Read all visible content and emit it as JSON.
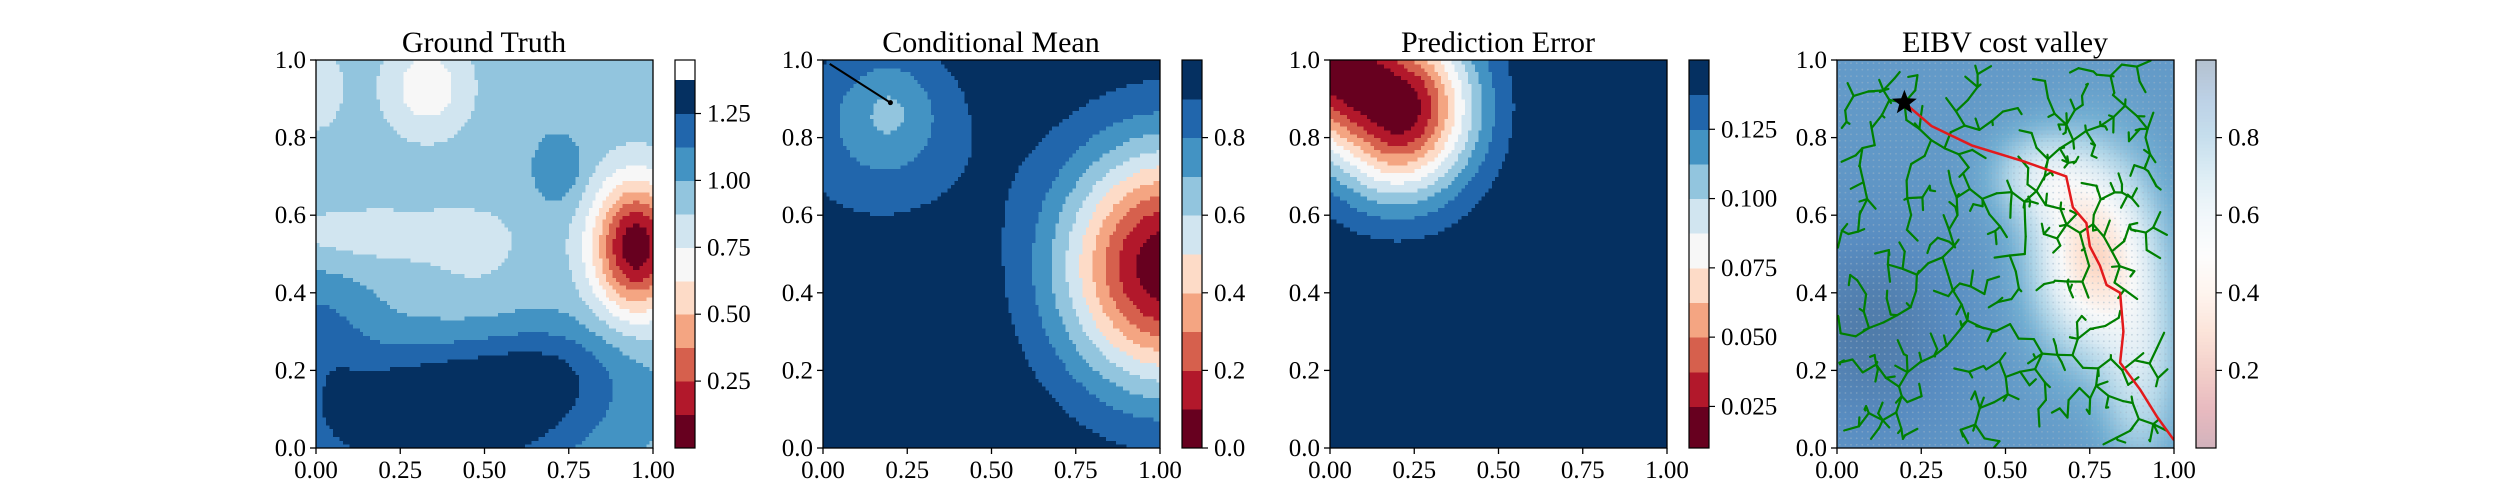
{
  "figure": {
    "panel_count": 4
  },
  "chart_data": [
    {
      "type": "heatmap",
      "title": "Ground Truth",
      "xlim": [
        0,
        1
      ],
      "ylim": [
        0,
        1
      ],
      "xticks": [
        "0.00",
        "0.25",
        "0.50",
        "0.75",
        "1.00"
      ],
      "yticks": [
        "0.0",
        "0.2",
        "0.4",
        "0.6",
        "0.8",
        "1.0"
      ],
      "xtick_values": [
        0,
        0.25,
        0.5,
        0.75,
        1.0
      ],
      "ytick_values": [
        0,
        0.2,
        0.4,
        0.6,
        0.8,
        1.0
      ],
      "colormap": "RdBu",
      "colorbar": {
        "levels": [
          0.0,
          0.125,
          0.25,
          0.375,
          0.5,
          0.625,
          0.75,
          0.875,
          1.0,
          1.125,
          1.25,
          1.375,
          1.45
        ],
        "colors": [
          "#67001f",
          "#b2182b",
          "#d6604d",
          "#f4a582",
          "#fddbc7",
          "#f7f7f7",
          "#d1e5f0",
          "#92c5de",
          "#4393c3",
          "#2166ac",
          "#053061"
        ],
        "ticks": [
          "0.25",
          "0.50",
          "0.75",
          "1.00",
          "1.25"
        ],
        "tick_values": [
          0.25,
          0.5,
          0.75,
          1.0,
          1.25
        ]
      },
      "field": {
        "base": 0.95,
        "terms": [
          {
            "type": "gauss",
            "x": 0.95,
            "y": 0.52,
            "sx": 0.09,
            "sy": 0.12,
            "a": -0.92
          },
          {
            "type": "gauss",
            "x": 0.33,
            "y": 0.93,
            "sx": 0.09,
            "sy": 0.09,
            "a": -0.28
          },
          {
            "type": "gauss",
            "x": 0.0,
            "y": 0.93,
            "sx": 0.06,
            "sy": 0.08,
            "a": -0.18
          },
          {
            "type": "gauss",
            "x": 0.15,
            "y": 0.55,
            "sx": 0.25,
            "sy": 0.06,
            "a": -0.14
          },
          {
            "type": "gauss",
            "x": 0.48,
            "y": 0.5,
            "sx": 0.1,
            "sy": 0.1,
            "a": -0.08
          },
          {
            "type": "gauss",
            "x": 0.35,
            "y": 0.05,
            "sx": 0.3,
            "sy": 0.1,
            "a": 0.45
          },
          {
            "type": "gauss",
            "x": 0.45,
            "y": 0.2,
            "sx": 0.3,
            "sy": 0.08,
            "a": 0.2
          },
          {
            "type": "gauss",
            "x": 0.0,
            "y": 0.3,
            "sx": 0.12,
            "sy": 0.12,
            "a": 0.2
          },
          {
            "type": "gauss",
            "x": 0.72,
            "y": 0.72,
            "sx": 0.05,
            "sy": 0.06,
            "a": 0.18
          },
          {
            "type": "gauss",
            "x": 0.7,
            "y": 0.2,
            "sx": 0.15,
            "sy": 0.1,
            "a": 0.15
          }
        ]
      }
    },
    {
      "type": "heatmap",
      "title": "Conditional Mean",
      "xlim": [
        0,
        1
      ],
      "ylim": [
        0,
        1
      ],
      "xticks": [
        "0.00",
        "0.25",
        "0.50",
        "0.75",
        "1.00"
      ],
      "yticks": [
        "0.0",
        "0.2",
        "0.4",
        "0.6",
        "0.8",
        "1.0"
      ],
      "xtick_values": [
        0,
        0.25,
        0.5,
        0.75,
        1.0
      ],
      "ytick_values": [
        0,
        0.2,
        0.4,
        0.6,
        0.8,
        1.0
      ],
      "colormap": "RdBu",
      "colorbar": {
        "levels": [
          0.0,
          0.1,
          0.2,
          0.3,
          0.4,
          0.5,
          0.6,
          0.7,
          0.8,
          0.9,
          1.0
        ],
        "colors": [
          "#67001f",
          "#b2182b",
          "#d6604d",
          "#f4a582",
          "#fddbc7",
          "#d1e5f0",
          "#92c5de",
          "#4393c3",
          "#2166ac",
          "#053061"
        ],
        "ticks": [
          "0.0",
          "0.2",
          "0.4",
          "0.6",
          "0.8"
        ],
        "tick_values": [
          0.0,
          0.2,
          0.4,
          0.6,
          0.8
        ]
      },
      "field": {
        "base": 0.99,
        "terms": [
          {
            "type": "gauss",
            "x": 1.02,
            "y": 0.47,
            "sx": 0.22,
            "sy": 0.22,
            "a": -0.97
          },
          {
            "type": "gauss",
            "x": 0.17,
            "y": 0.82,
            "sx": 0.2,
            "sy": 0.17,
            "a": -0.2
          },
          {
            "type": "gauss",
            "x": 0.2,
            "y": 0.88,
            "sx": 0.09,
            "sy": 0.09,
            "a": -0.12
          }
        ]
      },
      "path": [
        [
          0.02,
          0.99
        ],
        [
          0.2,
          0.89
        ]
      ]
    },
    {
      "type": "heatmap",
      "title": "Prediction Error",
      "xlim": [
        0,
        1
      ],
      "ylim": [
        0,
        1
      ],
      "xticks": [
        "0.00",
        "0.25",
        "0.50",
        "0.75",
        "1.00"
      ],
      "yticks": [
        "0.0",
        "0.2",
        "0.4",
        "0.6",
        "0.8",
        "1.0"
      ],
      "xtick_values": [
        0,
        0.25,
        0.5,
        0.75,
        1.0
      ],
      "ytick_values": [
        0,
        0.2,
        0.4,
        0.6,
        0.8,
        1.0
      ],
      "colormap": "RdBu",
      "colorbar": {
        "levels": [
          0.01,
          0.025,
          0.0375,
          0.05,
          0.0625,
          0.075,
          0.0875,
          0.1,
          0.1125,
          0.125,
          0.1375,
          0.15
        ],
        "colors": [
          "#67001f",
          "#b2182b",
          "#d6604d",
          "#f4a582",
          "#fddbc7",
          "#f7f7f7",
          "#d1e5f0",
          "#92c5de",
          "#4393c3",
          "#2166ac",
          "#053061"
        ],
        "ticks": [
          "0.025",
          "0.050",
          "0.075",
          "0.100",
          "0.125"
        ],
        "tick_values": [
          0.025,
          0.05,
          0.075,
          0.1,
          0.125
        ]
      },
      "field": {
        "base": 0.149,
        "terms": [
          {
            "type": "segment",
            "x1": 0.03,
            "y1": 0.98,
            "x2": 0.2,
            "y2": 0.88,
            "s": 0.155,
            "a": -0.137
          }
        ]
      }
    },
    {
      "type": "heatmap",
      "title": "EIBV cost valley",
      "xlim": [
        0,
        1
      ],
      "ylim": [
        0,
        1
      ],
      "xticks": [
        "0.00",
        "0.25",
        "0.50",
        "0.75",
        "1.00"
      ],
      "yticks": [
        "0.0",
        "0.2",
        "0.4",
        "0.6",
        "0.8",
        "1.0"
      ],
      "xtick_values": [
        0,
        0.25,
        0.5,
        0.75,
        1.0
      ],
      "ytick_values": [
        0,
        0.2,
        0.4,
        0.6,
        0.8,
        1.0
      ],
      "colormap": "RdBu",
      "colorbar": {
        "continuous": true,
        "vmin": 0.0,
        "vmax": 1.0,
        "ticks": [
          "0.2",
          "0.4",
          "0.6",
          "0.8"
        ],
        "tick_values": [
          0.2,
          0.4,
          0.6,
          0.8
        ]
      },
      "field": {
        "base": 0.86,
        "terms": [
          {
            "type": "gauss",
            "x": 0.76,
            "y": 0.5,
            "sx": 0.12,
            "sy": 0.17,
            "a": -0.48
          },
          {
            "type": "gauss",
            "x": 0.9,
            "y": 0.2,
            "sx": 0.08,
            "sy": 0.18,
            "a": -0.2
          },
          {
            "type": "gauss",
            "x": 0.6,
            "y": 0.7,
            "sx": 0.1,
            "sy": 0.08,
            "a": -0.2
          },
          {
            "type": "gauss",
            "x": 0.1,
            "y": 0.3,
            "sx": 0.2,
            "sy": 0.2,
            "a": 0.08
          }
        ]
      },
      "tree_color": "#008000",
      "path_color": "#e31a1c",
      "marker": {
        "symbol": "star",
        "x": 0.2,
        "y": 0.89
      },
      "path": [
        [
          0.2,
          0.89
        ],
        [
          0.28,
          0.83
        ],
        [
          0.4,
          0.78
        ],
        [
          0.55,
          0.74
        ],
        [
          0.68,
          0.7
        ],
        [
          0.7,
          0.62
        ],
        [
          0.74,
          0.58
        ],
        [
          0.75,
          0.52
        ],
        [
          0.78,
          0.47
        ],
        [
          0.8,
          0.42
        ],
        [
          0.84,
          0.4
        ],
        [
          0.85,
          0.3
        ],
        [
          0.84,
          0.22
        ],
        [
          0.9,
          0.15
        ],
        [
          0.95,
          0.08
        ],
        [
          1.0,
          0.02
        ]
      ]
    }
  ]
}
